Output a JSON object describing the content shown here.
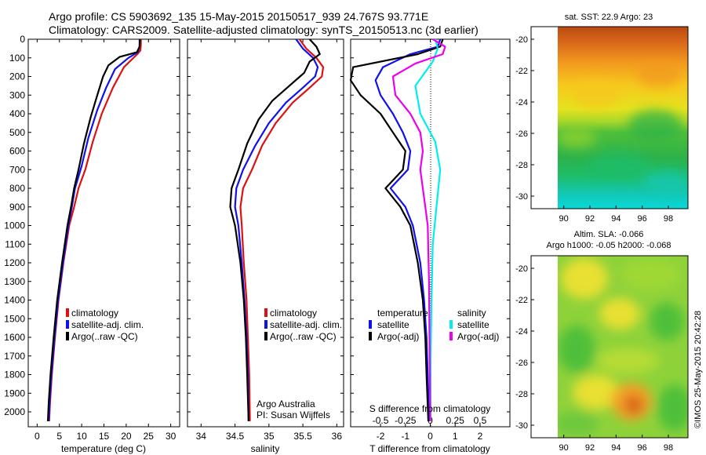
{
  "header": {
    "line1": "Argo profile: CS 5903692_135 15-May-2015 20150517_939 24.767S 93.771E",
    "line2": "Climatology: CARS2009. Satellite-adjusted climatology: synTS_20150513.nc (3d earlier)"
  },
  "credit": "Argo Australia",
  "pi": "PI: Susan Wijffels",
  "imos_stamp": "©IMOS 25-May-2015 20:42:28",
  "colors": {
    "climatology": "#dd1111",
    "satellite": "#1111ee",
    "argo": "#000000",
    "sat_sal": "#00eeee",
    "argo_sal": "#ee00ee"
  },
  "chart_data": [
    {
      "type": "line",
      "name": "temperature-profile",
      "xlabel": "temperature (deg C)",
      "xlim": [
        -2,
        32
      ],
      "xticks": [
        0,
        5,
        10,
        15,
        20,
        25,
        30
      ],
      "ylim": [
        2080,
        0
      ],
      "yticks": [
        0,
        100,
        200,
        300,
        400,
        500,
        600,
        700,
        800,
        900,
        1000,
        1100,
        1200,
        1300,
        1400,
        1500,
        1600,
        1700,
        1800,
        1900,
        2000
      ],
      "legend": [
        "climatology",
        "satellite-adj. clim.",
        "Argo(..raw -QC)"
      ],
      "series": [
        {
          "name": "climatology",
          "color": "#dd1111",
          "points": [
            [
              23.3,
              0
            ],
            [
              23.3,
              30
            ],
            [
              23.2,
              60
            ],
            [
              22.5,
              80
            ],
            [
              19.5,
              150
            ],
            [
              17.0,
              260
            ],
            [
              14.5,
              400
            ],
            [
              12.5,
              550
            ],
            [
              10.8,
              700
            ],
            [
              9.3,
              800
            ],
            [
              8.3,
              900
            ],
            [
              7.2,
              1000
            ],
            [
              5.9,
              1200
            ],
            [
              4.8,
              1400
            ],
            [
              4.0,
              1600
            ],
            [
              3.3,
              1800
            ],
            [
              2.9,
              1950
            ],
            [
              2.7,
              2050
            ]
          ]
        },
        {
          "name": "satellite-adj. clim.",
          "color": "#1111ee",
          "points": [
            [
              23.0,
              0
            ],
            [
              23.0,
              40
            ],
            [
              22.6,
              70
            ],
            [
              20.5,
              100
            ],
            [
              17.5,
              160
            ],
            [
              15.5,
              260
            ],
            [
              13.5,
              380
            ],
            [
              11.5,
              530
            ],
            [
              10.0,
              680
            ],
            [
              8.5,
              800
            ],
            [
              7.8,
              900
            ],
            [
              7.0,
              1000
            ],
            [
              5.8,
              1200
            ],
            [
              4.7,
              1400
            ],
            [
              3.9,
              1600
            ],
            [
              3.2,
              1800
            ],
            [
              2.8,
              1950
            ],
            [
              2.6,
              2050
            ]
          ]
        },
        {
          "name": "Argo(..raw -QC)",
          "color": "#000000",
          "points": [
            [
              23.1,
              0
            ],
            [
              23.0,
              40
            ],
            [
              22.4,
              70
            ],
            [
              18.5,
              95
            ],
            [
              16.0,
              140
            ],
            [
              14.8,
              200
            ],
            [
              13.5,
              300
            ],
            [
              12.0,
              420
            ],
            [
              10.5,
              560
            ],
            [
              9.3,
              700
            ],
            [
              8.3,
              800
            ],
            [
              7.6,
              900
            ],
            [
              6.8,
              1000
            ],
            [
              5.6,
              1200
            ],
            [
              4.5,
              1400
            ],
            [
              3.7,
              1600
            ],
            [
              3.0,
              1800
            ],
            [
              2.6,
              1950
            ],
            [
              2.4,
              2050
            ]
          ]
        }
      ]
    },
    {
      "type": "line",
      "name": "salinity-profile",
      "xlabel": "salinity",
      "xlim": [
        33.8,
        36.1
      ],
      "xticks": [
        34,
        34.5,
        35,
        35.5,
        36
      ],
      "xticklabels": [
        "34",
        "34.5",
        "35",
        "35.5",
        "36"
      ],
      "ylim": [
        2080,
        0
      ],
      "legend": [
        "climatology",
        "satellite-adj. clim.",
        "Argo(..raw -QC)"
      ],
      "series": [
        {
          "name": "climatology",
          "color": "#dd1111",
          "points": [
            [
              35.45,
              0
            ],
            [
              35.55,
              50
            ],
            [
              35.7,
              100
            ],
            [
              35.8,
              150
            ],
            [
              35.78,
              200
            ],
            [
              35.6,
              260
            ],
            [
              35.35,
              340
            ],
            [
              35.1,
              450
            ],
            [
              34.9,
              570
            ],
            [
              34.75,
              700
            ],
            [
              34.62,
              800
            ],
            [
              34.58,
              900
            ],
            [
              34.6,
              1000
            ],
            [
              34.63,
              1200
            ],
            [
              34.67,
              1400
            ],
            [
              34.69,
              1600
            ],
            [
              34.71,
              1800
            ],
            [
              34.72,
              2050
            ]
          ]
        },
        {
          "name": "satellite-adj. clim.",
          "color": "#1111ee",
          "points": [
            [
              35.4,
              0
            ],
            [
              35.5,
              50
            ],
            [
              35.65,
              100
            ],
            [
              35.72,
              150
            ],
            [
              35.68,
              200
            ],
            [
              35.5,
              260
            ],
            [
              35.25,
              340
            ],
            [
              35.0,
              450
            ],
            [
              34.8,
              570
            ],
            [
              34.62,
              700
            ],
            [
              34.52,
              800
            ],
            [
              34.5,
              900
            ],
            [
              34.55,
              1000
            ],
            [
              34.6,
              1200
            ],
            [
              34.64,
              1400
            ],
            [
              34.67,
              1600
            ],
            [
              34.69,
              1800
            ],
            [
              34.7,
              2050
            ]
          ]
        },
        {
          "name": "Argo(..raw -QC)",
          "color": "#000000",
          "points": [
            [
              35.6,
              0
            ],
            [
              35.7,
              40
            ],
            [
              35.75,
              80
            ],
            [
              35.6,
              120
            ],
            [
              35.52,
              180
            ],
            [
              35.3,
              250
            ],
            [
              35.05,
              330
            ],
            [
              34.85,
              430
            ],
            [
              34.68,
              560
            ],
            [
              34.55,
              700
            ],
            [
              34.45,
              800
            ],
            [
              34.43,
              900
            ],
            [
              34.5,
              1000
            ],
            [
              34.58,
              1200
            ],
            [
              34.63,
              1400
            ],
            [
              34.66,
              1600
            ],
            [
              34.68,
              1800
            ],
            [
              34.7,
              2050
            ]
          ]
        }
      ]
    },
    {
      "type": "line",
      "name": "difference-profile",
      "xlabel": "T difference from climatology",
      "top_label": "S difference from climatology",
      "xlim": [
        -3.2,
        3.2
      ],
      "xticks": [
        -2,
        -1,
        0,
        1,
        2
      ],
      "sticks": [
        "-0.5",
        "-0.25",
        "0",
        "0.25",
        "0.5"
      ],
      "sticks_values": [
        -2,
        -1,
        0,
        1,
        2
      ],
      "ylim": [
        2080,
        0
      ],
      "legend_headers": [
        "temperature",
        "salinity"
      ],
      "legend": [
        "satellite",
        "Argo(-adj)",
        "satellite",
        "Argo(-adj)"
      ],
      "series": [
        {
          "name": "temperature satellite",
          "color": "#1111ee",
          "points": [
            [
              0.4,
              0
            ],
            [
              0.3,
              40
            ],
            [
              -0.8,
              80
            ],
            [
              -1.9,
              150
            ],
            [
              -2.2,
              220
            ],
            [
              -2.0,
              300
            ],
            [
              -1.5,
              400
            ],
            [
              -1.1,
              500
            ],
            [
              -0.8,
              600
            ],
            [
              -0.9,
              700
            ],
            [
              -1.6,
              800
            ],
            [
              -1.0,
              900
            ],
            [
              -0.7,
              1000
            ],
            [
              -0.4,
              1200
            ],
            [
              -0.25,
              1400
            ],
            [
              -0.15,
              1600
            ],
            [
              -0.1,
              1800
            ],
            [
              -0.05,
              2050
            ]
          ]
        },
        {
          "name": "temperature Argo(-adj)",
          "color": "#000000",
          "points": [
            [
              0.5,
              0
            ],
            [
              0.4,
              40
            ],
            [
              -0.5,
              80
            ],
            [
              -3.1,
              150
            ],
            [
              -3.2,
              220
            ],
            [
              -2.8,
              300
            ],
            [
              -2.0,
              400
            ],
            [
              -1.5,
              500
            ],
            [
              -1.0,
              600
            ],
            [
              -1.1,
              700
            ],
            [
              -1.8,
              800
            ],
            [
              -1.2,
              900
            ],
            [
              -0.8,
              1000
            ],
            [
              -0.5,
              1200
            ],
            [
              -0.3,
              1400
            ],
            [
              -0.2,
              1600
            ],
            [
              -0.15,
              1800
            ],
            [
              -0.08,
              2050
            ]
          ]
        },
        {
          "name": "salinity satellite",
          "color": "#00eeee",
          "points": [
            [
              0.2,
              0
            ],
            [
              0.3,
              50
            ],
            [
              0.1,
              120
            ],
            [
              -0.6,
              250
            ],
            [
              -0.4,
              400
            ],
            [
              0.2,
              550
            ],
            [
              0.4,
              700
            ],
            [
              0.25,
              900
            ],
            [
              0.1,
              1100
            ],
            [
              0.05,
              1400
            ],
            [
              0.02,
              1700
            ],
            [
              0.01,
              2050
            ]
          ]
        },
        {
          "name": "salinity Argo(-adj)",
          "color": "#ee00ee",
          "points": [
            [
              0.1,
              0
            ],
            [
              0.6,
              40
            ],
            [
              0.5,
              80
            ],
            [
              -0.6,
              130
            ],
            [
              -1.5,
              200
            ],
            [
              -1.4,
              300
            ],
            [
              -0.8,
              400
            ],
            [
              -0.4,
              500
            ],
            [
              -0.3,
              600
            ],
            [
              -0.4,
              700
            ],
            [
              -0.3,
              800
            ],
            [
              -0.2,
              900
            ],
            [
              -0.1,
              1000
            ],
            [
              -0.05,
              1300
            ],
            [
              -0.03,
              1600
            ],
            [
              0,
              2050
            ]
          ]
        }
      ]
    },
    {
      "type": "heatmap",
      "name": "sst-map",
      "title": "sat. SST: 22.9  Argo: 23",
      "xticks": [
        90,
        92,
        94,
        96,
        98
      ],
      "yticks": [
        -20,
        -22,
        -24,
        -26,
        -28,
        -30
      ],
      "xlim": [
        87.5,
        99.5
      ],
      "ylim": [
        -30.8,
        -19.2
      ],
      "data_extent_x": [
        90,
        99.5
      ],
      "data_extent_y": [
        -30.8,
        -19.2
      ]
    },
    {
      "type": "heatmap",
      "name": "sla-map",
      "title": "Altim. SLA: -0.066",
      "subtitle": "Argo h1000: -0.05  h2000: -0.068",
      "xticks": [
        90,
        92,
        94,
        96,
        98
      ],
      "yticks": [
        -20,
        -22,
        -24,
        -26,
        -28,
        -30
      ],
      "xlim": [
        87.5,
        99.5
      ],
      "ylim": [
        -30.8,
        -19.2
      ],
      "data_extent_x": [
        90,
        99.5
      ],
      "data_extent_y": [
        -30.8,
        -19.2
      ]
    }
  ]
}
